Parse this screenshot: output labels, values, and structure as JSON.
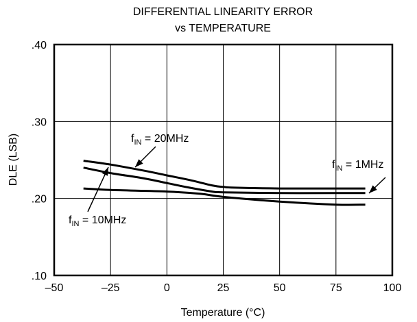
{
  "chart_data": {
    "type": "line",
    "title": "DIFFERENTIAL LINEARITY ERROR",
    "subtitle": "vs TEMPERATURE",
    "xlabel": "Temperature (°C)",
    "ylabel": "DLE (LSB)",
    "xlim": [
      -50,
      100
    ],
    "ylim": [
      0.1,
      0.4
    ],
    "x_ticks": [
      -50,
      -25,
      0,
      25,
      50,
      75,
      100
    ],
    "x_tick_labels": [
      "–50",
      "–25",
      "0",
      "25",
      "50",
      "75",
      "100"
    ],
    "y_ticks": [
      0.1,
      0.2,
      0.3,
      0.4
    ],
    "y_tick_labels": [
      ".10",
      ".20",
      ".30",
      ".40"
    ],
    "grid": true,
    "series": [
      {
        "name": "f_IN = 20MHz",
        "x": [
          -37,
          -25,
          -10,
          0,
          10,
          20,
          25,
          30,
          50,
          75,
          88
        ],
        "y": [
          0.249,
          0.244,
          0.236,
          0.23,
          0.224,
          0.217,
          0.215,
          0.214,
          0.213,
          0.213,
          0.213
        ]
      },
      {
        "name": "f_IN = 10MHz",
        "x": [
          -37,
          -25,
          -10,
          0,
          10,
          20,
          25,
          50,
          75,
          88
        ],
        "y": [
          0.24,
          0.233,
          0.226,
          0.22,
          0.214,
          0.209,
          0.208,
          0.207,
          0.207,
          0.207
        ]
      },
      {
        "name": "f_IN = 1MHz",
        "x": [
          -37,
          -25,
          0,
          15,
          25,
          50,
          75,
          88
        ],
        "y": [
          0.213,
          0.211,
          0.209,
          0.206,
          0.202,
          0.196,
          0.192,
          0.192
        ]
      }
    ],
    "annotations": [
      {
        "main": "f",
        "sub": "IN",
        "rest": " = 20MHz",
        "series": 0
      },
      {
        "main": "f",
        "sub": "IN",
        "rest": " = 10MHz",
        "series": 1
      },
      {
        "main": "f",
        "sub": "IN",
        "rest": " = 1MHz",
        "series": 2
      }
    ]
  }
}
